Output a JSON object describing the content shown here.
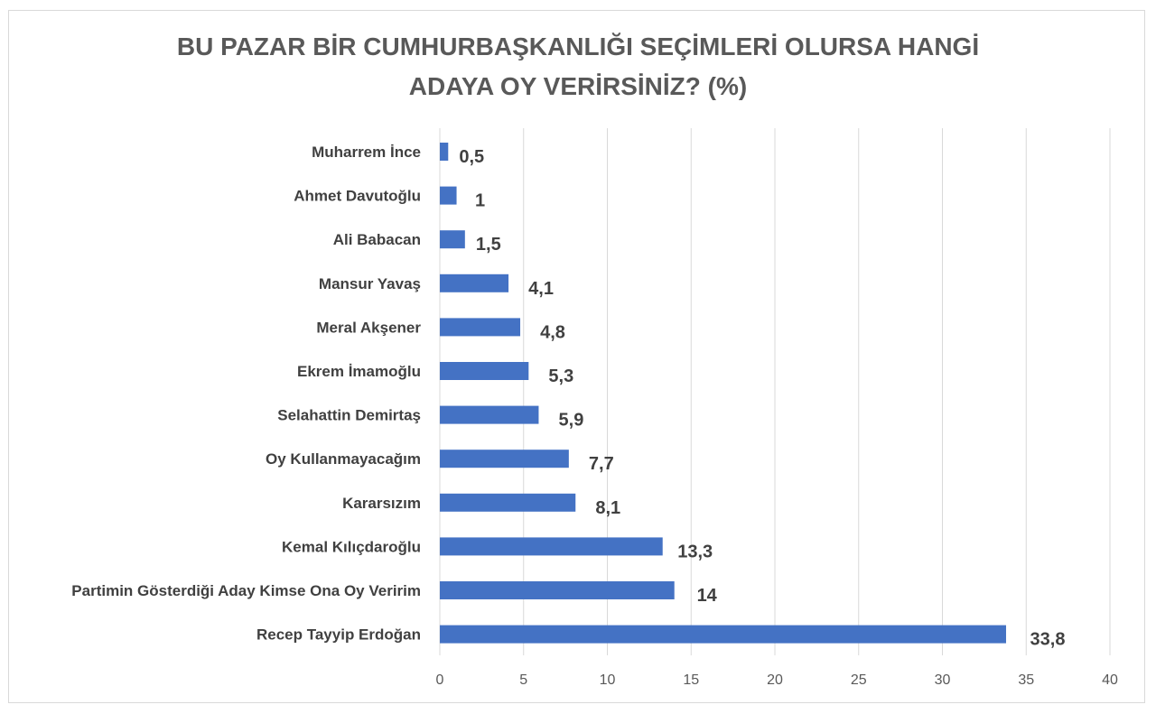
{
  "chart_data": {
    "type": "bar",
    "orientation": "horizontal",
    "title_line1": "BU PAZAR BİR CUMHURBAŞKANLIĞI SEÇİMLERİ OLURSA HANGİ",
    "title_line2": "ADAYA OY VERİRSİNİZ? (%)",
    "categories": [
      "Muharrem İnce",
      "Ahmet Davutoğlu",
      "Ali Babacan",
      "Mansur Yavaş",
      "Meral Akşener",
      "Ekrem İmamoğlu",
      "Selahattin Demirtaş",
      "Oy Kullanmayacağım",
      "Kararsızım",
      "Kemal Kılıçdaroğlu",
      "Partimin Gösterdiği Aday Kimse Ona Oy Veririm",
      "Recep Tayyip Erdoğan"
    ],
    "values": [
      0.5,
      1,
      1.5,
      4.1,
      4.8,
      5.3,
      5.9,
      7.7,
      8.1,
      13.3,
      14,
      33.8
    ],
    "value_labels": [
      "0,5",
      "1",
      "1,5",
      "4,1",
      "4,8",
      "5,3",
      "5,9",
      "7,7",
      "8,1",
      "13,3",
      "14",
      "33,8"
    ],
    "xlim": [
      0,
      40
    ],
    "xticks": [
      0,
      5,
      10,
      15,
      20,
      25,
      30,
      35,
      40
    ],
    "grid": true,
    "legend": "none",
    "bar_color": "#4472c4"
  }
}
